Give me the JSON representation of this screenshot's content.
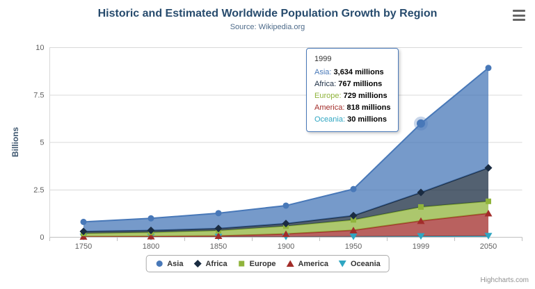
{
  "chart": {
    "title": "Historic and Estimated Worldwide Population Growth by Region",
    "subtitle": "Source: Wikipedia.org",
    "credits": "Highcharts.com"
  },
  "chart_data": {
    "type": "area",
    "stacked": true,
    "title": "Historic and Estimated Worldwide Population Growth by Region",
    "subtitle": "Source: Wikipedia.org",
    "categories": [
      "1750",
      "1800",
      "1850",
      "1900",
      "1950",
      "1999",
      "2050"
    ],
    "unit": "millions",
    "xlabel": "",
    "ylabel": "Billions",
    "ylim": [
      0,
      10
    ],
    "yticks": [
      0,
      2.5,
      5,
      7.5,
      10
    ],
    "grid": true,
    "legend_position": "bottom",
    "stack_order_bottom_to_top": [
      "Oceania",
      "America",
      "Europe",
      "Africa",
      "Asia"
    ],
    "series": [
      {
        "name": "Asia",
        "color": "#4878B8",
        "marker": "circle",
        "values": [
          502,
          635,
          809,
          947,
          1402,
          3634,
          5268
        ]
      },
      {
        "name": "Africa",
        "color": "#1A2C42",
        "marker": "diamond",
        "values": [
          106,
          107,
          111,
          133,
          221,
          767,
          1766
        ]
      },
      {
        "name": "Europe",
        "color": "#90B43C",
        "marker": "square",
        "values": [
          163,
          203,
          276,
          408,
          547,
          729,
          628
        ]
      },
      {
        "name": "America",
        "color": "#A22C29",
        "marker": "triangle",
        "values": [
          18,
          31,
          54,
          156,
          339,
          818,
          1201
        ]
      },
      {
        "name": "Oceania",
        "color": "#2FA6C2",
        "marker": "triangle-down",
        "values": [
          2,
          2,
          2,
          6,
          13,
          30,
          46
        ]
      }
    ]
  },
  "tooltip": {
    "header": "1999",
    "rows": [
      {
        "label": "Asia",
        "value": "3,634 millions"
      },
      {
        "label": "Africa",
        "value": "767 millions"
      },
      {
        "label": "Europe",
        "value": "729 millions"
      },
      {
        "label": "America",
        "value": "818 millions"
      },
      {
        "label": "Oceania",
        "value": "30 millions"
      }
    ],
    "highlight": {
      "series": "Asia",
      "category": "1999"
    }
  }
}
